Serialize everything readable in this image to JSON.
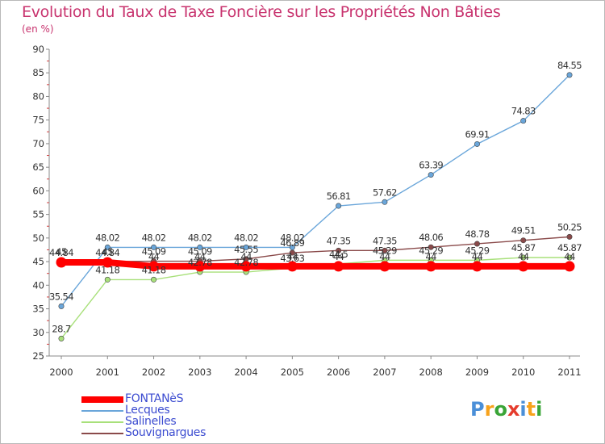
{
  "chart_data": {
    "type": "line",
    "title": "Evolution du Taux de Taxe Foncière sur les Propriétés Non Bâties",
    "unit_label": "(en %)",
    "categories": [
      "2000",
      "2001",
      "2002",
      "2003",
      "2004",
      "2005",
      "2006",
      "2007",
      "2008",
      "2009",
      "2010",
      "2011"
    ],
    "ylim": [
      25,
      90
    ],
    "yticks": [
      25,
      30,
      35,
      40,
      45,
      50,
      55,
      60,
      65,
      70,
      75,
      80,
      85,
      90
    ],
    "grid": false,
    "legend_position": "bottom-left",
    "series": [
      {
        "name": "FONTANèS",
        "color": "#ff0000",
        "values": [
          44.84,
          44.84,
          44,
          44,
          44,
          44,
          44,
          44,
          44,
          44,
          44,
          44
        ],
        "labels": [
          "44.84",
          "44.84",
          "44",
          "44",
          "44",
          "44",
          "44",
          "44",
          "44",
          "44",
          "44",
          "44"
        ]
      },
      {
        "name": "Lecques",
        "color": "#6aa6da",
        "values": [
          35.54,
          48.02,
          48.02,
          48.02,
          48.02,
          48.02,
          56.81,
          57.62,
          63.39,
          69.91,
          74.83,
          84.55
        ],
        "labels": [
          "35.54",
          "48.02",
          "48.02",
          "48.02",
          "48.02",
          "48.02",
          "56.81",
          "57.62",
          "63.39",
          "69.91",
          "74.83",
          "84.55"
        ]
      },
      {
        "name": "Salinelles",
        "color": "#a8e07a",
        "values": [
          28.7,
          41.18,
          41.18,
          42.78,
          42.78,
          43.63,
          44.5,
          45.29,
          45.29,
          45.29,
          45.87,
          45.87
        ],
        "labels": [
          "28.7",
          "41.18",
          "41.18",
          "42.78",
          "42.78",
          "43.63",
          "44.5",
          "45.29",
          "45.29",
          "45.29",
          "45.87",
          "45.87"
        ]
      },
      {
        "name": "Souvignargues",
        "color": "#8a4a4a",
        "values": [
          45,
          45,
          45.09,
          45.09,
          45.55,
          46.89,
          47.35,
          47.35,
          48.06,
          48.78,
          49.51,
          50.25
        ],
        "labels": [
          "45",
          "45",
          "45.09",
          "45.09",
          "45.55",
          "46.89",
          "47.35",
          "47.35",
          "48.06",
          "48.78",
          "49.51",
          "50.25"
        ]
      }
    ]
  },
  "logo": {
    "letters": [
      "P",
      "r",
      "o",
      "x",
      "i",
      "t",
      "i"
    ],
    "colors": [
      "#4a8fd8",
      "#f7a21b",
      "#3aa537",
      "#e53b2c",
      "#4a8fd8",
      "#f7a21b",
      "#3aa537"
    ]
  }
}
